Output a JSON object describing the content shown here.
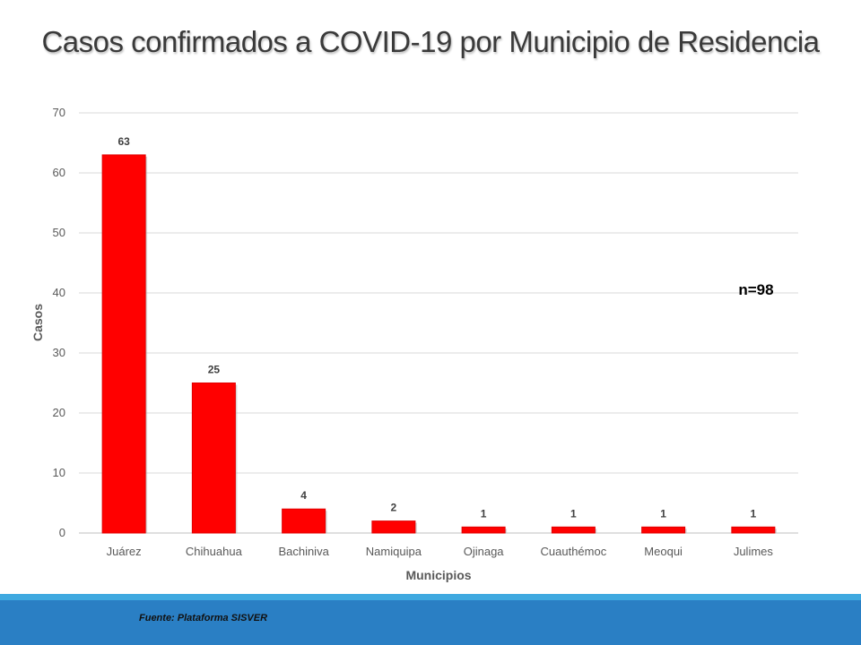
{
  "chart_data": {
    "type": "bar",
    "title": "Casos confirmados a COVID-19 por Municipio de Residencia",
    "xlabel": "Municipios",
    "ylabel": "Casos",
    "categories": [
      "Juárez",
      "Chihuahua",
      "Bachiniva",
      "Namiquipa",
      "Ojinaga",
      "Cuauthémoc",
      "Meoqui",
      "Julimes"
    ],
    "values": [
      63,
      25,
      4,
      2,
      1,
      1,
      1,
      1
    ],
    "ylim": [
      0,
      70
    ],
    "yticks": [
      0,
      10,
      20,
      30,
      40,
      50,
      60,
      70
    ],
    "grid": true,
    "legend": "none",
    "annotation": "n=98",
    "bar_color": "#ff0000"
  },
  "footer": {
    "source": "Fuente: Plataforma  SISVER",
    "band_color": "#2a7fc4"
  }
}
